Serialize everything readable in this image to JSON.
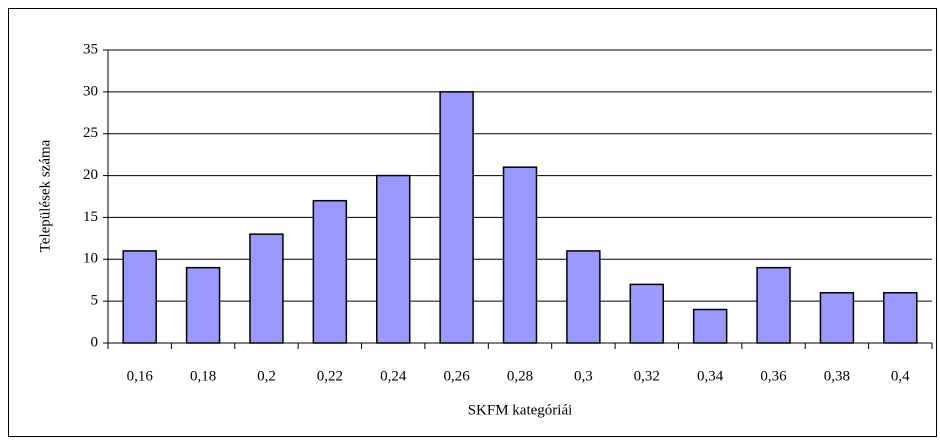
{
  "chart_data": {
    "type": "bar",
    "y_label": "Települések száma",
    "x_label": "SKFM kategóriái",
    "categories": [
      "0,16",
      "0,18",
      "0,2",
      "0,22",
      "0,24",
      "0,26",
      "0,28",
      "0,3",
      "0,32",
      "0,34",
      "0,36",
      "0,38",
      "0,4"
    ],
    "values": [
      11,
      9,
      13,
      17,
      20,
      30,
      21,
      11,
      7,
      4,
      9,
      6,
      6
    ],
    "color": "#9999ff",
    "ylim": [
      0,
      35
    ],
    "yticks": [
      0,
      5,
      10,
      15,
      20,
      25,
      30,
      35
    ],
    "grid": true
  }
}
